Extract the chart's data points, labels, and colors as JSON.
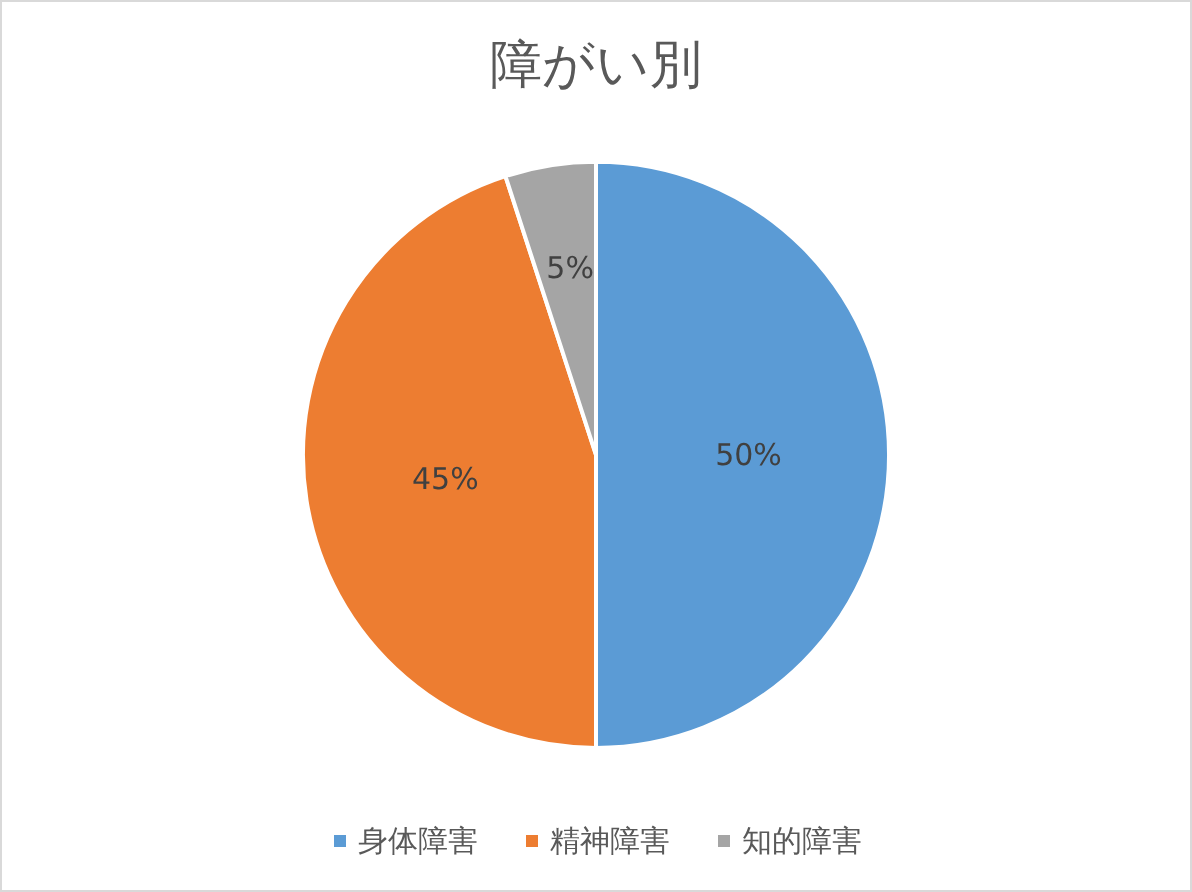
{
  "chart_data": {
    "type": "pie",
    "title": "障がい別",
    "categories": [
      "身体障害",
      "精神障害",
      "知的障害"
    ],
    "values": [
      50,
      45,
      5
    ],
    "colors": [
      "#5b9bd5",
      "#ed7d31",
      "#a5a5a5"
    ],
    "value_labels": [
      "50%",
      "45%",
      "5%"
    ],
    "legend": "bottom"
  }
}
